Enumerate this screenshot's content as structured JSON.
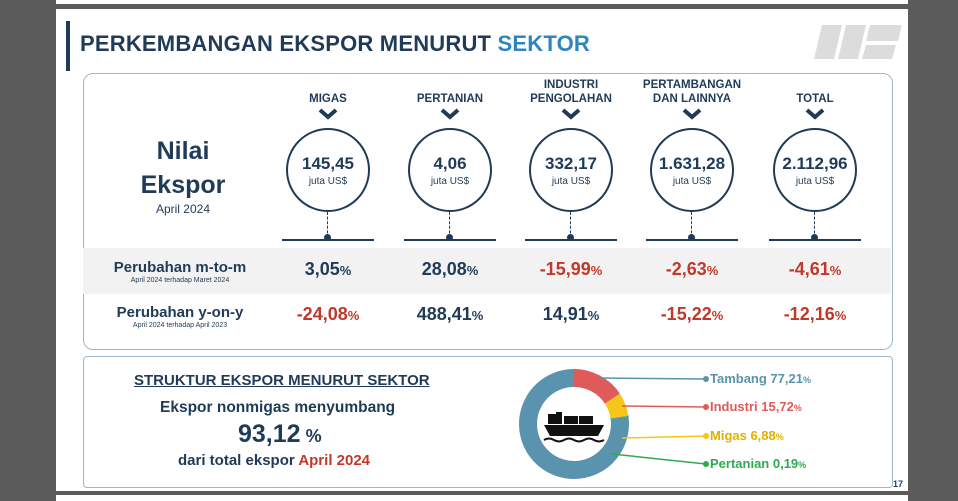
{
  "title": {
    "part1": "PERKEMBANGAN EKSPOR MENURUT ",
    "part2": "SEKTOR"
  },
  "nilai": {
    "line1": "Nilai",
    "line2": "Ekspor",
    "period": "April 2024"
  },
  "columns": [
    {
      "head": "MIGAS",
      "value": "145,45",
      "unit": "juta US$",
      "mtm": "3,05",
      "mtm_sign": "pos",
      "yoy": "-24,08",
      "yoy_sign": "neg"
    },
    {
      "head": "PERTANIAN",
      "value": "4,06",
      "unit": "juta US$",
      "mtm": "28,08",
      "mtm_sign": "pos",
      "yoy": "488,41",
      "yoy_sign": "pos"
    },
    {
      "head": "INDUSTRI\nPENGOLAHAN",
      "value": "332,17",
      "unit": "juta US$",
      "mtm": "-15,99",
      "mtm_sign": "neg",
      "yoy": "14,91",
      "yoy_sign": "pos"
    },
    {
      "head": "PERTAMBANGAN\nDAN LAINNYA",
      "value": "1.631,28",
      "unit": "juta US$",
      "mtm": "-2,63",
      "mtm_sign": "neg",
      "yoy": "-15,22",
      "yoy_sign": "neg"
    },
    {
      "head": "TOTAL",
      "value": "2.112,96",
      "unit": "juta US$",
      "mtm": "-4,61",
      "mtm_sign": "neg",
      "yoy": "-12,16",
      "yoy_sign": "neg"
    }
  ],
  "pct_symbol": "%",
  "rows": {
    "mtm_label": "Perubahan m-to-m",
    "mtm_note": "April 2024 terhadap Maret 2024",
    "yoy_label": "Perubahan y-on-y",
    "yoy_note": "April 2024 terhadap April 2023"
  },
  "struktur": {
    "title": "STRUKTUR EKSPOR MENURUT SEKTOR",
    "line1": "Ekspor nonmigas menyumbang",
    "value": "93,12",
    "pct": " %",
    "line3_a": "dari total ekspor ",
    "line3_b": "April 2024"
  },
  "shares": [
    {
      "name": "Tambang",
      "value": "77,21",
      "num": 77.21,
      "color": "#5a93ad"
    },
    {
      "name": "Industri",
      "value": "15,72",
      "num": 15.72,
      "color": "#e05a5a"
    },
    {
      "name": "Migas",
      "value": "6,88",
      "num": 6.88,
      "color": "#f5c518"
    },
    {
      "name": "Pertanian",
      "value": "0,19",
      "num": 0.19,
      "color": "#2eaa4f"
    }
  ],
  "icon": "cargo-ship-icon",
  "page_number": "17",
  "colors": {
    "navy": "#1f3b57",
    "accent_blue": "#2e86c1",
    "negative_red": "#c0392b"
  }
}
